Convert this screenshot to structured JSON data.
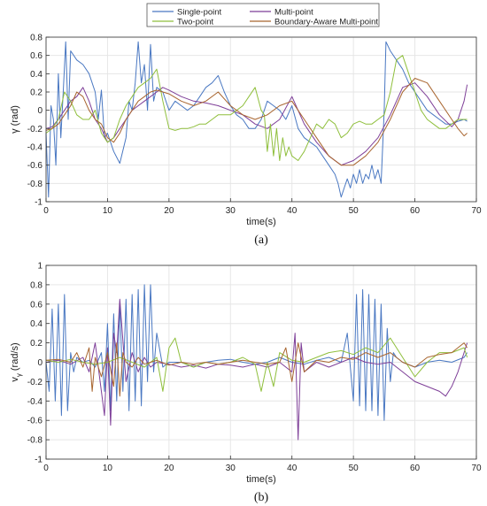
{
  "colors": {
    "single_point": "#4a78c2",
    "multi_point": "#7e3f98",
    "two_point": "#8fbf3c",
    "boundary_aware": "#a8652f",
    "grid": "#e6e6e6",
    "axis": "#333333"
  },
  "legend": {
    "placement": "top-center",
    "columns": 2,
    "entries": [
      "Single-point",
      "Multi-point",
      "Two-point",
      "Boundary-Aware Multi-point"
    ]
  },
  "chart_data": [
    {
      "type": "line",
      "panel_label": "(a)",
      "title": "",
      "xlabel": "time(s)",
      "ylabel": "γ (rad)",
      "xlim": [
        0,
        70
      ],
      "ylim": [
        -1,
        0.8
      ],
      "xticks": [
        0,
        10,
        20,
        30,
        40,
        50,
        60,
        70
      ],
      "yticks": [
        -1,
        -0.8,
        -0.6,
        -0.4,
        -0.2,
        0,
        0.2,
        0.4,
        0.6,
        0.8
      ],
      "ytick_labels": [
        "-1",
        "-0.8",
        "-0.6",
        "-0.4",
        "-0.2",
        "0",
        "0.2",
        "0.4",
        "0.6",
        "0.8"
      ],
      "grid": true,
      "series": [
        {
          "name": "Single-point",
          "color_key": "single_point",
          "x": [
            0,
            0.4,
            0.8,
            1.2,
            1.6,
            2,
            2.4,
            2.8,
            3.2,
            3.6,
            4,
            5,
            6,
            7,
            8,
            8.5,
            9,
            9.5,
            10,
            11,
            12,
            13,
            13.5,
            14,
            14.5,
            15,
            15.5,
            16,
            16.5,
            17,
            17.5,
            18,
            19,
            20,
            21,
            22,
            23,
            24,
            25,
            26,
            27,
            28,
            29,
            30,
            31,
            32,
            33,
            34,
            35,
            36,
            37,
            38,
            39,
            40,
            41,
            42,
            43,
            44,
            45,
            46,
            47,
            47.5,
            48,
            48.5,
            49,
            49.5,
            50,
            50.5,
            51,
            51.5,
            52,
            52.5,
            53,
            53.5,
            54,
            54.5,
            55,
            55.3,
            56,
            57,
            58,
            59,
            60,
            61,
            62,
            63,
            64,
            65,
            66,
            67,
            68,
            68.5
          ],
          "y": [
            -0.25,
            -0.95,
            0.05,
            -0.1,
            -0.6,
            0.4,
            -0.3,
            0.2,
            0.75,
            -0.1,
            0.65,
            0.55,
            0.5,
            0.4,
            0.2,
            -0.1,
            0.22,
            -0.3,
            -0.25,
            -0.45,
            -0.58,
            -0.3,
            0.1,
            0.0,
            0.3,
            0.75,
            0.3,
            0.5,
            0.0,
            0.72,
            0.1,
            0.25,
            0.2,
            0.0,
            0.1,
            0.05,
            0.0,
            0.05,
            0.15,
            0.25,
            0.3,
            0.38,
            0.2,
            0.05,
            -0.05,
            -0.1,
            -0.2,
            -0.2,
            -0.1,
            0.1,
            0.05,
            0.0,
            -0.1,
            0.05,
            -0.2,
            -0.3,
            -0.35,
            -0.4,
            -0.5,
            -0.6,
            -0.7,
            -0.8,
            -0.95,
            -0.85,
            -0.75,
            -0.85,
            -0.7,
            -0.8,
            -0.65,
            -0.8,
            -0.7,
            -0.75,
            -0.6,
            -0.75,
            -0.65,
            -0.8,
            0.0,
            0.75,
            0.65,
            0.55,
            0.45,
            0.3,
            0.2,
            0.1,
            0.0,
            -0.05,
            -0.1,
            -0.15,
            -0.15,
            -0.12,
            -0.1,
            -0.12
          ]
        },
        {
          "name": "Multi-point",
          "color_key": "multi_point",
          "x": [
            0,
            1,
            2,
            3,
            4,
            5,
            6,
            7,
            8,
            9,
            10,
            11,
            12,
            13,
            14,
            15,
            16,
            17,
            18,
            19,
            20,
            22,
            24,
            26,
            28,
            30,
            32,
            34,
            36,
            38,
            40,
            42,
            44,
            46,
            48,
            50,
            52,
            54,
            56,
            58,
            60,
            62,
            64,
            66,
            67,
            68,
            68.5
          ],
          "y": [
            -0.2,
            -0.18,
            -0.1,
            0.0,
            0.1,
            0.15,
            0.25,
            0.1,
            -0.1,
            -0.2,
            -0.35,
            -0.3,
            -0.2,
            -0.1,
            0.0,
            0.05,
            0.1,
            0.15,
            0.2,
            0.25,
            0.22,
            0.15,
            0.1,
            0.08,
            0.05,
            0.0,
            -0.05,
            -0.15,
            -0.2,
            -0.1,
            0.15,
            -0.15,
            -0.35,
            -0.5,
            -0.6,
            -0.55,
            -0.45,
            -0.3,
            -0.05,
            0.25,
            0.3,
            0.15,
            -0.05,
            -0.18,
            -0.1,
            0.1,
            0.28
          ]
        },
        {
          "name": "Two-point",
          "color_key": "two_point",
          "x": [
            0,
            1,
            2,
            3,
            4,
            5,
            6,
            7,
            8,
            9,
            10,
            11,
            12,
            13,
            14,
            15,
            16,
            17,
            18,
            19,
            20,
            21,
            22,
            23,
            24,
            25,
            26,
            27,
            28,
            29,
            30,
            31,
            32,
            33,
            34,
            35,
            35.5,
            36,
            36.5,
            37,
            37.5,
            38,
            38.5,
            39,
            39.5,
            40,
            41,
            42,
            43,
            44,
            45,
            46,
            47,
            48,
            49,
            50,
            51,
            52,
            53,
            54,
            55,
            56,
            57,
            58,
            59,
            60,
            61,
            62,
            63,
            64,
            65,
            66,
            67,
            68,
            68.5
          ],
          "y": [
            -0.25,
            -0.2,
            -0.1,
            0.2,
            0.1,
            -0.05,
            -0.1,
            -0.1,
            0.0,
            -0.25,
            -0.35,
            -0.3,
            -0.1,
            0.05,
            0.15,
            0.25,
            0.3,
            0.35,
            0.45,
            0.1,
            -0.2,
            -0.22,
            -0.2,
            -0.2,
            -0.18,
            -0.15,
            -0.15,
            -0.1,
            -0.05,
            -0.05,
            -0.05,
            0.0,
            0.05,
            0.15,
            0.25,
            0.0,
            -0.05,
            -0.45,
            -0.15,
            -0.5,
            -0.2,
            -0.55,
            -0.3,
            -0.5,
            -0.4,
            -0.5,
            -0.55,
            -0.45,
            -0.3,
            -0.15,
            -0.2,
            -0.1,
            -0.15,
            -0.3,
            -0.25,
            -0.15,
            -0.12,
            -0.15,
            -0.15,
            -0.1,
            -0.05,
            0.2,
            0.55,
            0.6,
            0.4,
            0.2,
            0.0,
            -0.1,
            -0.15,
            -0.2,
            -0.2,
            -0.15,
            -0.1,
            -0.1,
            -0.1
          ]
        },
        {
          "name": "Boundary-Aware Multi-point",
          "color_key": "boundary_aware",
          "x": [
            0,
            1,
            2,
            3,
            4,
            5,
            6,
            7,
            8,
            9,
            10,
            11,
            12,
            13,
            14,
            15,
            16,
            17,
            18,
            19,
            20,
            22,
            24,
            26,
            28,
            30,
            32,
            34,
            36,
            38,
            40,
            42,
            44,
            46,
            48,
            50,
            52,
            54,
            56,
            58,
            60,
            62,
            64,
            66,
            67,
            68,
            68.5
          ],
          "y": [
            -0.22,
            -0.2,
            -0.15,
            -0.05,
            0.05,
            0.2,
            0.15,
            0.0,
            -0.1,
            -0.15,
            -0.3,
            -0.35,
            -0.25,
            -0.1,
            0.0,
            0.1,
            0.15,
            0.2,
            0.22,
            0.2,
            0.18,
            0.1,
            0.05,
            0.1,
            0.2,
            0.05,
            -0.05,
            -0.1,
            -0.05,
            0.05,
            0.1,
            -0.1,
            -0.3,
            -0.5,
            -0.6,
            -0.6,
            -0.5,
            -0.35,
            -0.1,
            0.2,
            0.35,
            0.3,
            0.1,
            -0.1,
            -0.2,
            -0.28,
            -0.25
          ]
        }
      ]
    },
    {
      "type": "line",
      "panel_label": "(b)",
      "title": "",
      "xlabel": "time(s)",
      "ylabel": "v_γ (rad/s)",
      "xlim": [
        0,
        70
      ],
      "ylim": [
        -1,
        1
      ],
      "xticks": [
        0,
        10,
        20,
        30,
        40,
        50,
        60,
        70
      ],
      "yticks": [
        -1,
        -0.8,
        -0.6,
        -0.4,
        -0.2,
        0,
        0.2,
        0.4,
        0.6,
        0.8,
        1
      ],
      "ytick_labels": [
        "-1",
        "-0.8",
        "-0.6",
        "-0.4",
        "-0.2",
        "0",
        "0.2",
        "0.4",
        "0.6",
        "0.8",
        "1"
      ],
      "grid": true,
      "series": [
        {
          "name": "Single-point",
          "color_key": "single_point",
          "x": [
            0,
            0.5,
            1,
            1.5,
            2,
            2.5,
            3,
            3.5,
            4,
            4.5,
            5,
            6,
            7,
            8,
            9,
            9.5,
            10,
            10.5,
            11,
            11.5,
            12,
            12.5,
            13,
            13.5,
            14,
            14.5,
            15,
            15.5,
            16,
            16.5,
            17,
            17.5,
            18,
            19,
            20,
            22,
            24,
            26,
            28,
            30,
            32,
            34,
            36,
            38,
            40,
            42,
            44,
            46,
            48,
            49,
            50,
            50.5,
            51,
            51.5,
            52,
            52.5,
            53,
            53.5,
            54,
            54.5,
            55,
            55.5,
            56,
            56.5,
            57,
            58,
            60,
            62,
            64,
            66,
            68,
            68.5
          ],
          "y": [
            0.0,
            -0.3,
            0.55,
            -0.4,
            0.6,
            -0.55,
            0.7,
            -0.5,
            0.1,
            -0.1,
            0.05,
            0.0,
            0.02,
            -0.05,
            0.1,
            -0.3,
            0.4,
            -0.5,
            0.5,
            -0.4,
            0.6,
            -0.3,
            0.65,
            -0.5,
            0.7,
            -0.4,
            0.75,
            -0.45,
            0.8,
            -0.2,
            0.8,
            -0.1,
            0.3,
            -0.05,
            0.0,
            0.0,
            -0.05,
            0.0,
            0.02,
            0.03,
            0.0,
            -0.02,
            0.0,
            0.05,
            0.0,
            -0.02,
            0.02,
            0.05,
            0.0,
            0.3,
            -0.4,
            0.7,
            -0.45,
            0.75,
            -0.5,
            0.7,
            -0.5,
            0.65,
            -0.55,
            0.6,
            -0.6,
            0.35,
            -0.2,
            0.1,
            0.05,
            0.0,
            -0.05,
            0.0,
            0.02,
            0.0,
            0.05,
            0.1
          ]
        },
        {
          "name": "Multi-point",
          "color_key": "multi_point",
          "x": [
            0,
            2,
            4,
            6,
            7,
            8,
            9,
            9.5,
            10,
            10.5,
            11,
            11.5,
            12,
            13,
            14,
            15,
            16,
            17,
            18,
            20,
            22,
            24,
            26,
            28,
            30,
            32,
            34,
            36,
            38,
            40,
            40.5,
            41,
            41.5,
            42,
            44,
            46,
            48,
            50,
            52,
            54,
            56,
            58,
            60,
            62,
            64,
            65,
            66,
            67,
            68,
            68.5
          ],
          "y": [
            0.0,
            0.02,
            -0.02,
            0.05,
            -0.1,
            0.2,
            -0.3,
            -0.55,
            0.15,
            -0.65,
            0.3,
            0.1,
            0.65,
            -0.2,
            0.1,
            -0.1,
            0.05,
            -0.05,
            0.0,
            -0.02,
            -0.05,
            -0.03,
            -0.06,
            -0.02,
            -0.03,
            -0.05,
            -0.02,
            -0.05,
            0.0,
            -0.1,
            0.3,
            -0.8,
            0.2,
            -0.1,
            0.0,
            -0.05,
            0.0,
            0.05,
            0.0,
            -0.02,
            0.0,
            -0.1,
            -0.2,
            -0.25,
            -0.3,
            -0.35,
            -0.25,
            -0.1,
            0.1,
            0.2
          ]
        },
        {
          "name": "Two-point",
          "color_key": "two_point",
          "x": [
            0,
            2,
            4,
            6,
            8,
            10,
            12,
            14,
            16,
            18,
            19,
            20,
            21,
            22,
            24,
            26,
            28,
            30,
            32,
            34,
            35,
            36,
            37,
            38,
            40,
            42,
            44,
            46,
            48,
            50,
            52,
            54,
            56,
            58,
            60,
            62,
            64,
            66,
            68,
            68.5
          ],
          "y": [
            0.02,
            0.0,
            0.03,
            0.0,
            -0.02,
            0.0,
            0.05,
            0.0,
            -0.05,
            0.05,
            -0.3,
            0.15,
            0.25,
            0.0,
            -0.05,
            0.0,
            -0.02,
            0.0,
            0.05,
            -0.02,
            -0.3,
            0.0,
            -0.25,
            0.1,
            0.02,
            0.0,
            0.05,
            0.1,
            0.12,
            0.08,
            0.15,
            0.1,
            0.25,
            0.05,
            -0.15,
            0.0,
            0.1,
            0.1,
            0.15,
            0.05
          ]
        },
        {
          "name": "Boundary-Aware Multi-point",
          "color_key": "boundary_aware",
          "x": [
            0,
            2,
            4,
            5,
            6,
            7,
            7.5,
            8,
            9,
            10,
            11,
            11.5,
            12,
            12.5,
            13,
            14,
            15,
            16,
            17,
            18,
            20,
            22,
            24,
            26,
            28,
            30,
            32,
            34,
            36,
            38,
            39,
            40,
            41,
            42,
            44,
            46,
            48,
            50,
            52,
            54,
            56,
            58,
            60,
            62,
            64,
            66,
            68,
            68.5
          ],
          "y": [
            0.02,
            0.03,
            0.0,
            0.1,
            -0.05,
            0.15,
            -0.3,
            0.05,
            -0.15,
            0.1,
            -0.25,
            0.2,
            -0.35,
            0.1,
            0.0,
            -0.05,
            0.05,
            -0.02,
            0.0,
            0.02,
            -0.03,
            0.0,
            -0.02,
            0.0,
            -0.02,
            0.0,
            0.02,
            0.0,
            -0.02,
            0.0,
            0.15,
            -0.2,
            0.2,
            -0.1,
            0.02,
            0.0,
            0.05,
            0.03,
            0.1,
            0.05,
            0.1,
            0.0,
            -0.05,
            0.05,
            0.08,
            0.1,
            0.2,
            0.15
          ]
        }
      ]
    }
  ]
}
